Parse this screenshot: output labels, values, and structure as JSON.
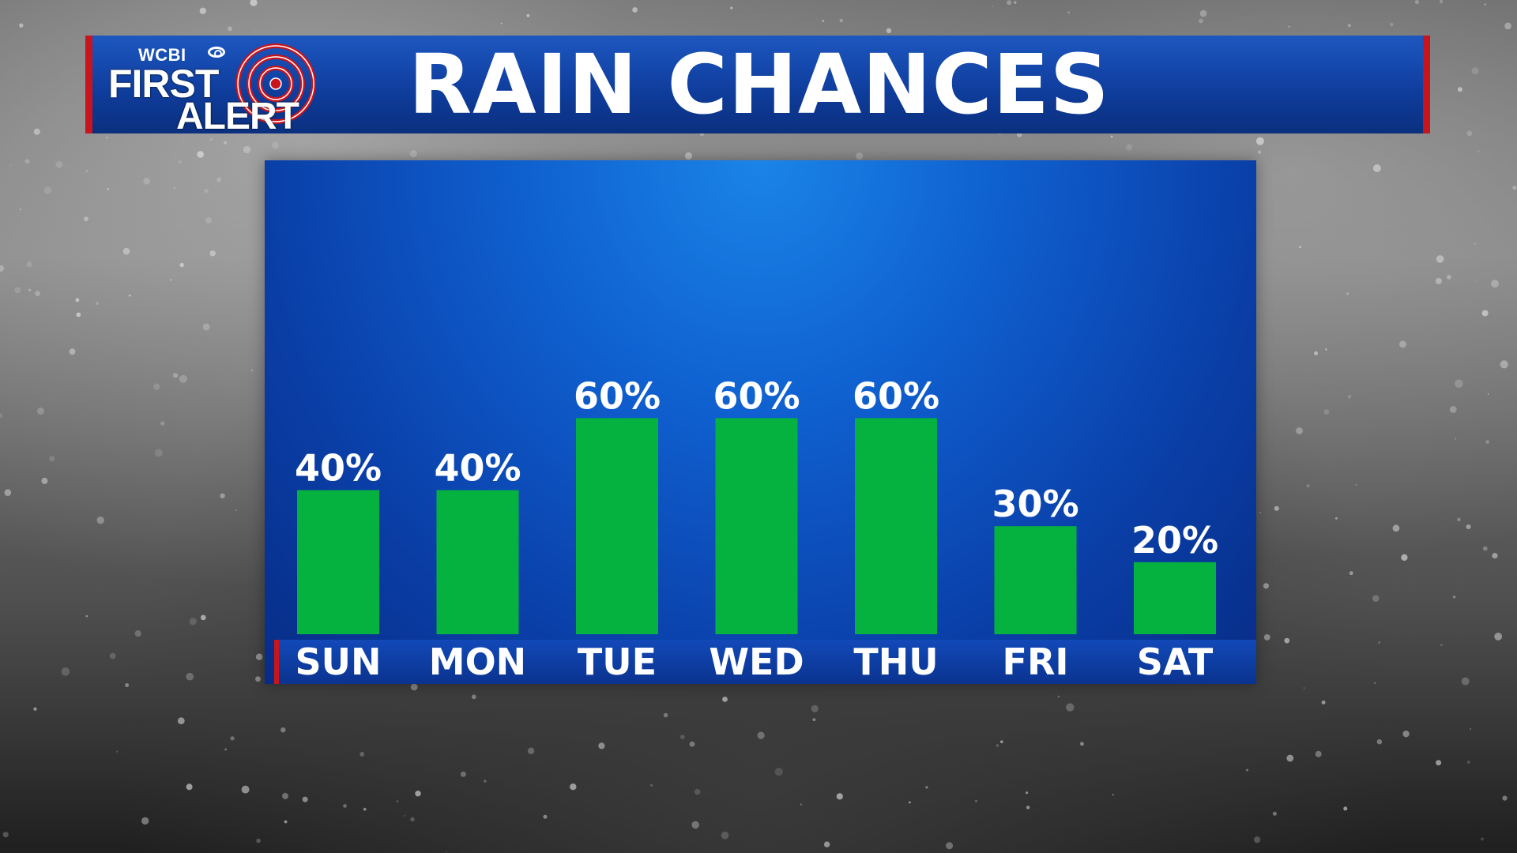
{
  "header": {
    "title": "RAIN CHANCES",
    "logo": {
      "station": "WCBI",
      "brand_line1": "FIRST",
      "brand_line2": "ALERT"
    }
  },
  "colors": {
    "banner_blue": "#1248b0",
    "accent_red": "#c8141c",
    "bar_green": "#05b240",
    "panel_blue": "#0f5fcf"
  },
  "chart_data": {
    "type": "bar",
    "title": "RAIN CHANCES",
    "categories": [
      "SUN",
      "MON",
      "TUE",
      "WED",
      "THU",
      "FRI",
      "SAT"
    ],
    "values": [
      40,
      40,
      60,
      60,
      60,
      30,
      20
    ],
    "data_labels": [
      "40%",
      "40%",
      "60%",
      "60%",
      "60%",
      "30%",
      "20%"
    ],
    "unit": "%",
    "ylim": [
      0,
      100
    ],
    "grid": false,
    "legend": "none"
  }
}
